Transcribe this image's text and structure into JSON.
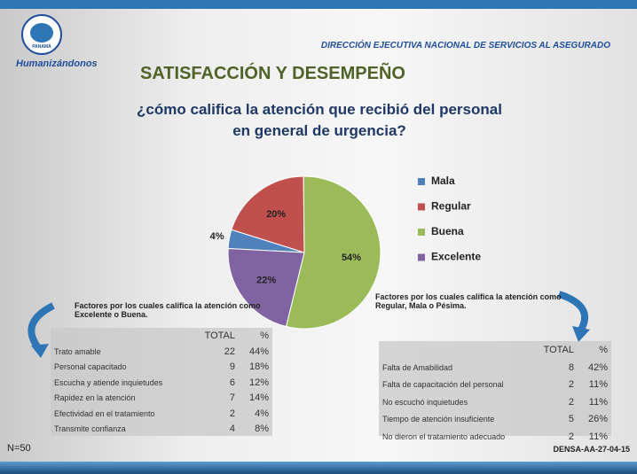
{
  "header": {
    "org": "DIRECCIÓN EJECUTIVA NACIONAL DE SERVICIOS AL ASEGURADO",
    "slogan": "Humanizándonos",
    "logo_text": "PANAMÁ"
  },
  "chart_data": {
    "type": "pie",
    "title": "SATISFACCIÓN Y DESEMPEÑO",
    "subtitle": "¿cómo califica la atención que recibió del personal en general de urgencia?",
    "categories": [
      "Mala",
      "Regular",
      "Buena",
      "Excelente"
    ],
    "values": [
      4,
      20,
      54,
      22
    ],
    "value_labels": [
      "4%",
      "20%",
      "54%",
      "22%"
    ],
    "colors": [
      "#4f81bd",
      "#c0504d",
      "#9bbb59",
      "#8064a2"
    ],
    "legend": "right"
  },
  "left_table": {
    "title": "Factores por los cuales califica la atención como Excelente o Buena.",
    "headers": [
      "TOTAL",
      "%"
    ],
    "rows": [
      [
        "Trato amable",
        22,
        "44%"
      ],
      [
        "Personal capacitado",
        9,
        "18%"
      ],
      [
        "Escucha y atiende inquietudes",
        6,
        "12%"
      ],
      [
        "Rapidez en la atención",
        7,
        "14%"
      ],
      [
        "Efectividad en el tratamiento",
        2,
        "4%"
      ],
      [
        "Transmite confianza",
        4,
        "8%"
      ]
    ]
  },
  "right_table": {
    "title": "Factores por los cuales califica la atención como Regular, Mala o Pésima.",
    "headers": [
      "TOTAL",
      "%"
    ],
    "rows": [
      [
        "Falta de Amabilidad",
        8,
        "42%"
      ],
      [
        "Falta de capacitación del personal",
        2,
        "11%"
      ],
      [
        "No escuchó inquietudes",
        2,
        "11%"
      ],
      [
        "Tiempo de atención insuficiente",
        5,
        "26%"
      ],
      [
        "No dieron el tratamiento adecuado",
        2,
        "11%"
      ]
    ]
  },
  "footer": {
    "n": "N=50",
    "code": "DENSA-AA-27-04-15"
  }
}
